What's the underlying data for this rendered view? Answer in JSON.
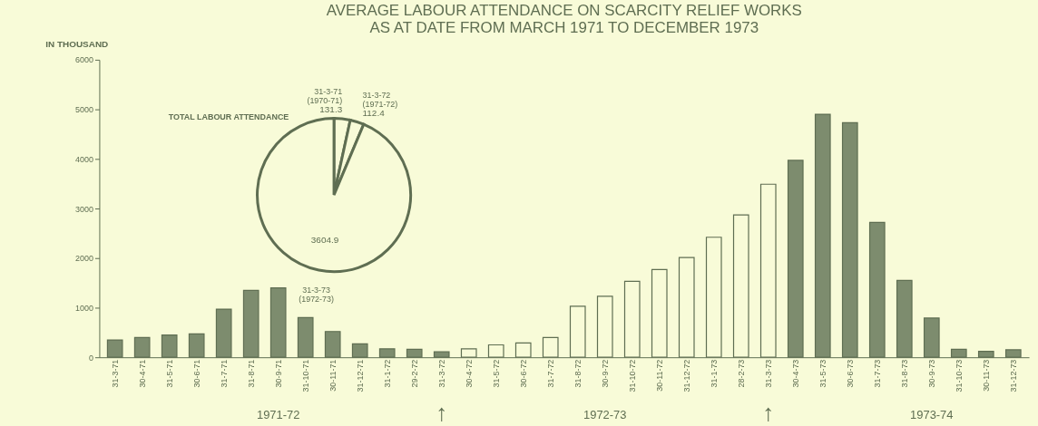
{
  "chart_data": [
    {
      "type": "bar",
      "title": [
        "AVERAGE LABOUR  ATTENDANCE ON SCARCITY RELIEF WORKS",
        "AS AT DATE FROM MARCH 1971 TO DECEMBER 1973"
      ],
      "ylabel": "IN THOUSAND",
      "categories": [
        "31-3-71",
        "30-4-71",
        "31-5-71",
        "30-6-71",
        "31-7-71",
        "31-8-71",
        "30-9-71",
        "31-10-71",
        "30-11-71",
        "31-12-71",
        "31-1-72",
        "29-2-72",
        "31-3-72",
        "30-4-72",
        "31-5-72",
        "30-6-72",
        "31-7-72",
        "31-8-72",
        "30-9-72",
        "31-10-72",
        "30-11-72",
        "31-12-72",
        "31-1-73",
        "28-2-73",
        "31-3-73",
        "30-4-73",
        "31-5-73",
        "30-6-73",
        "31-7-73",
        "31-8-73",
        "30-9-73",
        "31-10-73",
        "30-11-73",
        "31-12-73"
      ],
      "values": [
        350,
        400,
        450,
        470,
        970,
        1350,
        1400,
        800,
        520,
        270,
        170,
        160,
        110,
        170,
        250,
        290,
        400,
        1030,
        1230,
        1530,
        1770,
        2010,
        2420,
        2870,
        3490,
        3970,
        4900,
        4730,
        2720,
        1550,
        790,
        160,
        120,
        150
      ],
      "colors": [
        "#7d8c6e",
        "#7d8c6e",
        "#7d8c6e",
        "#7d8c6e",
        "#7d8c6e",
        "#7d8c6e",
        "#7d8c6e",
        "#7d8c6e",
        "#7d8c6e",
        "#7d8c6e",
        "#7d8c6e",
        "#7d8c6e",
        "#7d8c6e",
        "#f8fbd8",
        "#f8fbd8",
        "#f8fbd8",
        "#f8fbd8",
        "#f8fbd8",
        "#f8fbd8",
        "#f8fbd8",
        "#f8fbd8",
        "#f8fbd8",
        "#f8fbd8",
        "#f8fbd8",
        "#f8fbd8",
        "#7d8c6e",
        "#7d8c6e",
        "#7d8c6e",
        "#7d8c6e",
        "#7d8c6e",
        "#7d8c6e",
        "#7d8c6e",
        "#7d8c6e",
        "#7d8c6e"
      ],
      "ylim": [
        0,
        6000
      ],
      "yticks": [
        0,
        1000,
        2000,
        3000,
        4000,
        5000,
        6000
      ],
      "grid": false,
      "annotations": [
        "1971-72",
        "1972-73",
        "1973-74",
        "↑",
        "↑"
      ]
    },
    {
      "type": "pie",
      "title": "TOTAL LABOUR ATTENDANCE",
      "categories": [
        "31-3-71 (1970-71)",
        "31-3-72 (1971-72)",
        "31-3-73 (1972-73)"
      ],
      "values": [
        131.3,
        112.4,
        3604.9
      ],
      "data_labels": true,
      "colors": [
        "#f8fbd8",
        "#f8fbd8",
        "#f8fbd8"
      ]
    }
  ]
}
